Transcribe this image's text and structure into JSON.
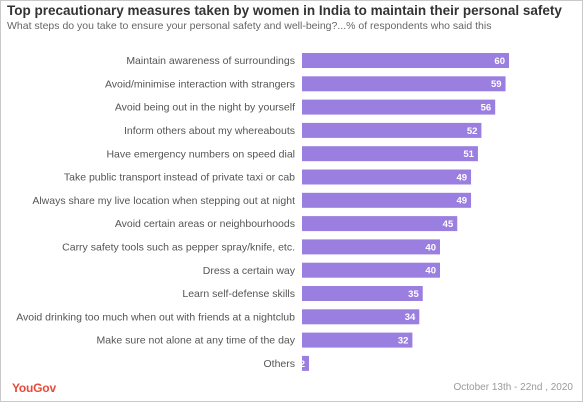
{
  "header": {
    "title": "Top precautionary measures taken by women in India to maintain their personal safety",
    "subtitle": "What steps do you take to ensure your personal safety and well-being?...% of respondents who said this"
  },
  "footer": {
    "brand": "YouGov",
    "date": "October 13th - 22nd , 2020"
  },
  "colors": {
    "bar": "#9b7fe0",
    "brand": "#e84a3a"
  },
  "chart_data": {
    "type": "bar",
    "orientation": "horizontal",
    "title": "Top precautionary measures taken by women in India to maintain their personal safety",
    "subtitle": "What steps do you take to ensure your personal safety and well-being?...% of respondents who said this",
    "categories": [
      "Maintain awareness of surroundings",
      "Avoid/minimise interaction with strangers",
      "Avoid being out in the night by yourself",
      "Inform others about my whereabouts",
      "Have emergency numbers on speed dial",
      "Take public transport instead of private taxi or cab",
      "Always share my live location when stepping out at night",
      "Avoid certain areas or neighbourhoods",
      "Carry safety tools such as pepper spray/knife, etc.",
      "Dress a certain way",
      "Learn self-defense skills",
      "Avoid drinking too much when out with friends at a nightclub",
      "Make sure not alone at any time of the day",
      "Others"
    ],
    "values": [
      60,
      59,
      56,
      52,
      51,
      49,
      49,
      45,
      40,
      40,
      35,
      34,
      32,
      2
    ],
    "data_labels": true,
    "grid": false,
    "xlim": [
      0,
      60
    ]
  }
}
